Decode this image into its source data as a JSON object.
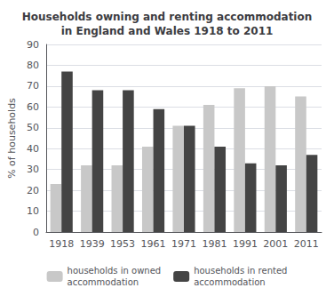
{
  "chart_data": {
    "type": "bar",
    "title": "Households owning and renting accommodation\nin England and Wales 1918 to 2011",
    "categories": [
      "1918",
      "1939",
      "1953",
      "1961",
      "1971",
      "1981",
      "1991",
      "2001",
      "2011"
    ],
    "series": [
      {
        "name": "households in owned\naccommodation",
        "color": "#c8c8c8",
        "values": [
          23,
          32,
          32,
          41,
          51,
          61,
          69,
          70,
          65
        ]
      },
      {
        "name": "households in rented\naccommodation",
        "color": "#444444",
        "values": [
          77,
          68,
          68,
          59,
          51,
          41,
          33,
          32,
          37
        ]
      }
    ],
    "ylabel": "% of households",
    "ylim": [
      0,
      90
    ],
    "yticks": [
      0,
      10,
      20,
      30,
      40,
      50,
      60,
      70,
      80,
      90
    ],
    "grid": true,
    "legend": "bottom"
  }
}
